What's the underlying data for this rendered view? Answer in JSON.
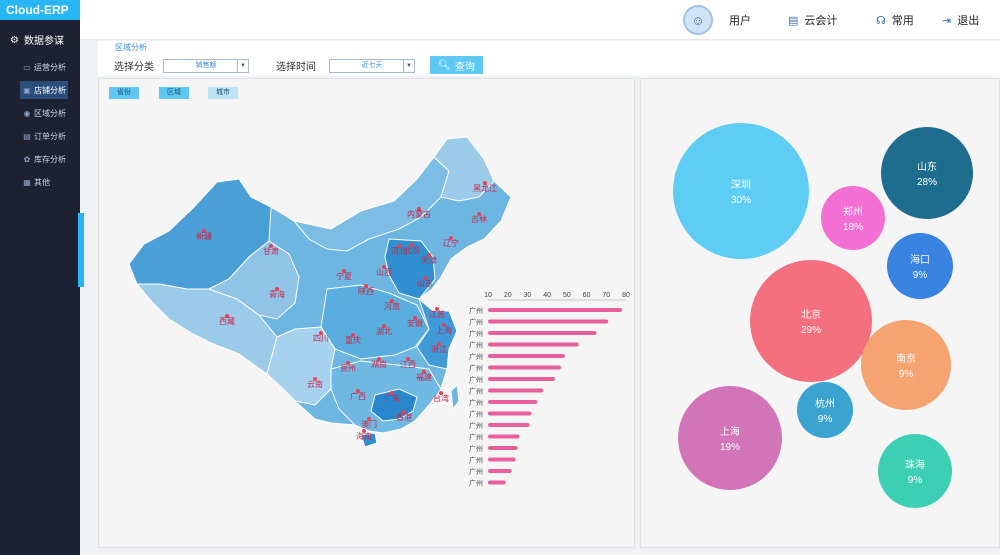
{
  "app": {
    "logo": "Cloud-ERP"
  },
  "sidebar": {
    "section_title": "数据参谋",
    "items": [
      {
        "label": "运营分析",
        "icon": "chart-icon"
      },
      {
        "label": "店铺分析",
        "icon": "shop-icon",
        "active": true
      },
      {
        "label": "区域分析",
        "icon": "location-icon"
      },
      {
        "label": "订单分析",
        "icon": "order-icon"
      },
      {
        "label": "库存分析",
        "icon": "stock-icon"
      },
      {
        "label": "其他",
        "icon": "grid-icon"
      }
    ]
  },
  "header": {
    "user_label": "用户",
    "accounting_label": "云会计",
    "common_label": "常用",
    "logout_label": "退出"
  },
  "filter": {
    "title": "区域分析",
    "category_label": "选择分类",
    "category_value": "销售额",
    "time_label": "选择时间",
    "time_value": "近七天",
    "query_label": "查询"
  },
  "map": {
    "tabs": [
      "省份",
      "区域",
      "城市"
    ],
    "provinces": [
      "新疆",
      "西藏",
      "青海",
      "甘肃",
      "内蒙古",
      "黑龙江",
      "吉林",
      "辽宁",
      "宁夏",
      "陕西",
      "山西",
      "河北",
      "北京",
      "天津",
      "山东",
      "河南",
      "江苏",
      "安徽",
      "上海",
      "四川",
      "重庆",
      "湖北",
      "浙江",
      "贵州",
      "湖南",
      "江西",
      "福建",
      "云南",
      "广西",
      "广东",
      "台湾",
      "香港",
      "澳门",
      "海南"
    ]
  },
  "chart_data": [
    {
      "type": "bar",
      "categories": [
        "广州",
        "广州",
        "广州",
        "广州",
        "广州",
        "广州",
        "广州",
        "广州",
        "广州",
        "广州",
        "广州",
        "广州",
        "广州",
        "广州",
        "广州",
        "广州"
      ],
      "values": [
        78,
        71,
        65,
        56,
        49,
        47,
        44,
        38,
        35,
        32,
        31,
        26,
        25,
        24,
        22,
        19
      ],
      "xlim": [
        10,
        80
      ],
      "xticks": [
        10,
        20,
        30,
        40,
        50,
        60,
        70,
        80
      ]
    },
    {
      "type": "bubble",
      "items": [
        {
          "name": "深圳",
          "value": "30%",
          "color": "#5ecdf4"
        },
        {
          "name": "山东",
          "value": "28%",
          "color": "#1e6d8e"
        },
        {
          "name": "郑州",
          "value": "18%",
          "color": "#f36fd3"
        },
        {
          "name": "海口",
          "value": "9%",
          "color": "#3883e0"
        },
        {
          "name": "北京",
          "value": "29%",
          "color": "#f4707f"
        },
        {
          "name": "南京",
          "value": "9%",
          "color": "#f5a371"
        },
        {
          "name": "杭州",
          "value": "9%",
          "color": "#3aa3cf"
        },
        {
          "name": "上海",
          "value": "19%",
          "color": "#d174b8"
        },
        {
          "name": "珠海",
          "value": "9%",
          "color": "#3dcfb4"
        }
      ]
    }
  ]
}
